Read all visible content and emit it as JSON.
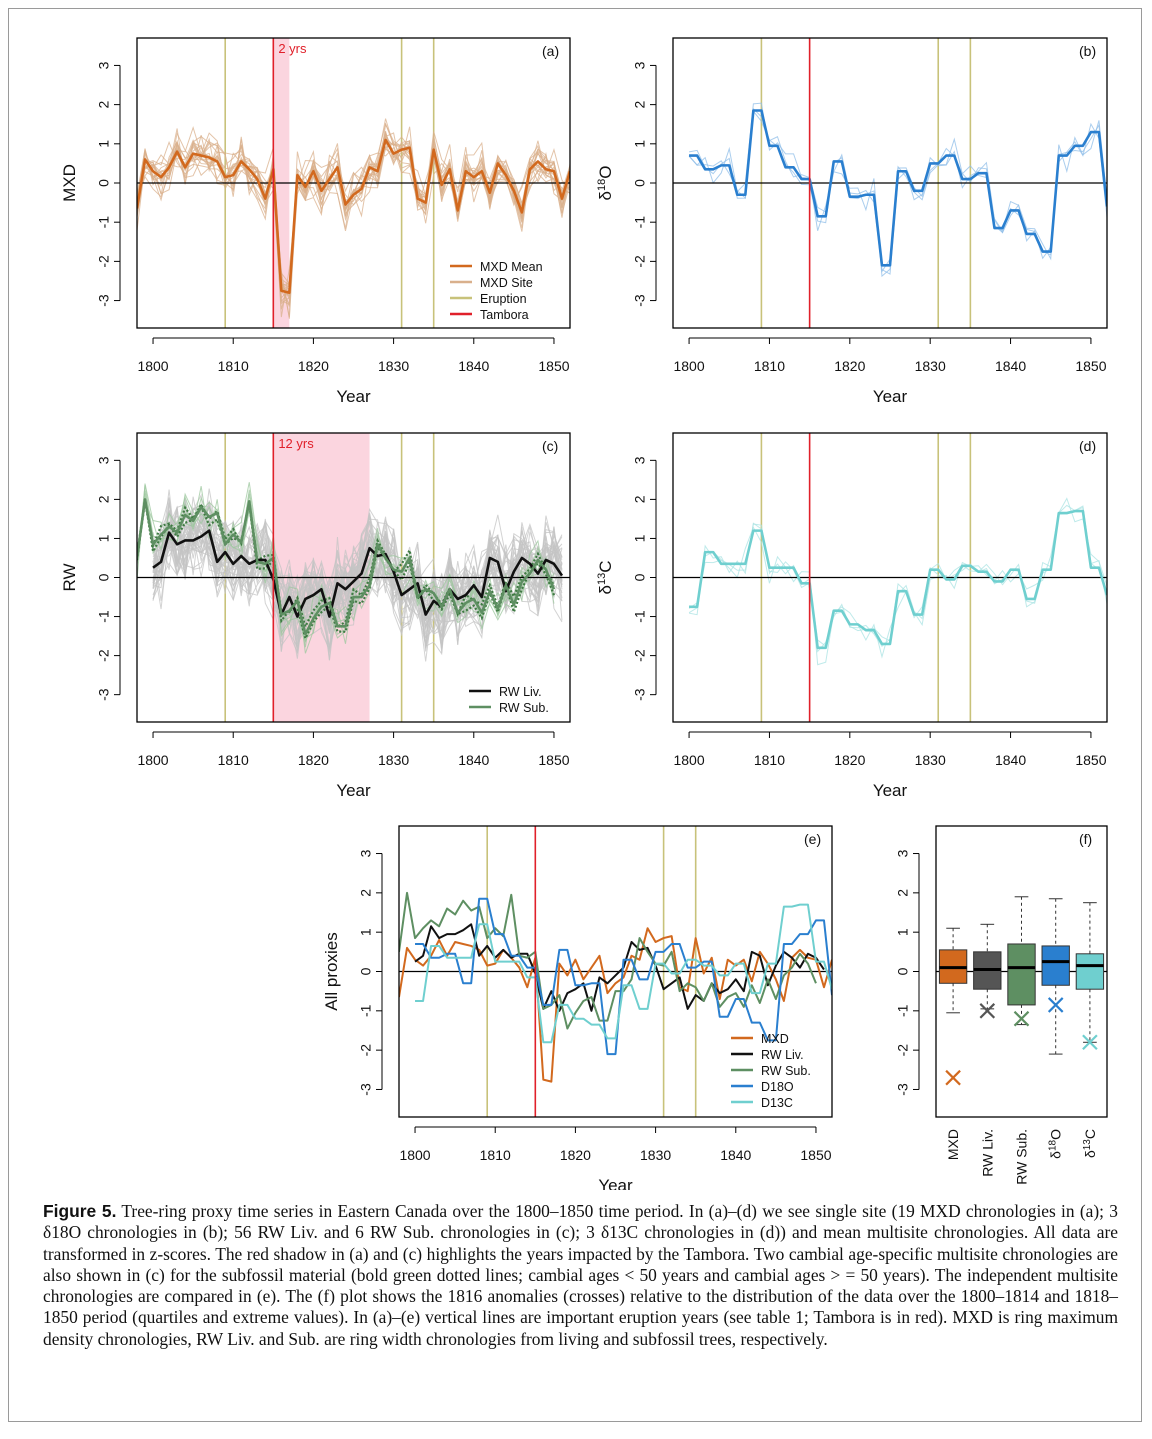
{
  "figure": {
    "caption_label": "Figure 5.",
    "caption_text": "Tree-ring proxy time series in Eastern Canada over the 1800–1850 time period. In (a)–(d) we see single site (19 MXD chronologies in (a); 3 δ18O chronologies in (b); 56 RW Liv. and 6 RW Sub. chronologies in (c); 3 δ13C chronologies in (d)) and mean multisite chronologies. All data are transformed in z-scores. The red shadow in (a) and (c) highlights the years impacted by the Tambora. Two cambial age-specific multisite chronologies are also shown in (c) for the subfossil material (bold green dotted lines; cambial ages < 50 years and cambial ages > = 50 years). The independent multisite chronologies are compared in (e). The (f) plot shows the 1816 anomalies (crosses) relative to the distribution of the data over the 1800–1814 and 1818–1850 period (quartiles and extreme values). In (a)–(e) vertical lines are important eruption years (see table 1; Tambora is in red). MXD is ring maximum density chronologies, RW Liv. and Sub. are ring width chronologies from living and subfossil trees, respectively."
  },
  "colors": {
    "mxd": "#d2691e",
    "mxd_site": "#d9b08c",
    "eruption": "#c8c27a",
    "tambora": "#e0202a",
    "rw_liv": "#111111",
    "rw_sub": "#5e8f62",
    "d18o": "#2a7fcf",
    "d13c": "#6fcfcf",
    "shade": "#fbd5df"
  },
  "chart_data": [
    {
      "type": "line",
      "panel": "(a)",
      "ylabel": "MXD",
      "xlabel": "Year",
      "xlim": [
        1798,
        1852
      ],
      "ylim": [
        -3.7,
        3.7
      ],
      "xticks": [
        "1800",
        "1810",
        "1820",
        "1830",
        "1840",
        "1850"
      ],
      "yticks": [
        "-3",
        "-2",
        "-1",
        "0",
        "1",
        "2",
        "3"
      ],
      "eruptions": [
        1809,
        1831,
        1835
      ],
      "tambora": 1815,
      "shade": {
        "start": 1815,
        "end": 1817,
        "label": "2 yrs"
      },
      "legend": [
        "MXD Mean",
        "MXD Site",
        "Eruption",
        "Tambora"
      ],
      "series": [
        {
          "name": "MXD Mean",
          "x_start": 1798,
          "values": [
            -0.65,
            0.6,
            0.3,
            0.15,
            0.4,
            0.8,
            0.4,
            0.75,
            0.7,
            0.65,
            0.55,
            0.15,
            0.2,
            0.55,
            0.35,
            0.1,
            -0.4,
            0.35,
            -2.75,
            -2.8,
            0.2,
            -0.1,
            0.3,
            -0.2,
            0.1,
            0.4,
            -0.55,
            -0.3,
            -0.15,
            0.4,
            0.3,
            1.1,
            0.75,
            0.85,
            0.9,
            -0.4,
            -0.5,
            0.85,
            -0.05,
            0.35,
            -0.7,
            0.3,
            0.15,
            0.3,
            -0.25,
            0.5,
            0.2,
            -0.2,
            -0.75,
            0.35,
            0.55,
            0.35,
            0.3,
            -0.4,
            0.3
          ]
        }
      ]
    },
    {
      "type": "line",
      "panel": "(b)",
      "ylabel": "δ18O",
      "xlabel": "Year",
      "xlim": [
        1798,
        1852
      ],
      "ylim": [
        -3.7,
        3.7
      ],
      "xticks": [
        "1800",
        "1810",
        "1820",
        "1830",
        "1840",
        "1850"
      ],
      "yticks": [
        "-3",
        "-2",
        "-1",
        "0",
        "1",
        "2",
        "3"
      ],
      "eruptions": [
        1809,
        1831,
        1835
      ],
      "tambora": 1815,
      "series": [
        {
          "name": "δ18O mean",
          "x_start": 1800,
          "values": [
            0.7,
            0.7,
            0.35,
            0.35,
            0.45,
            0.45,
            -0.3,
            -0.3,
            1.85,
            1.85,
            0.95,
            0.95,
            0.4,
            0.4,
            0.1,
            0.1,
            -0.85,
            -0.85,
            0.55,
            0.55,
            -0.35,
            -0.35,
            -0.3,
            -0.3,
            -2.1,
            -2.1,
            0.3,
            0.3,
            -0.2,
            -0.2,
            0.5,
            0.5,
            0.7,
            0.7,
            0.1,
            0.1,
            0.25,
            0.25,
            -1.15,
            -1.15,
            -0.7,
            -0.7,
            -1.3,
            -1.3,
            -1.75,
            -1.75,
            0.7,
            0.7,
            0.95,
            0.95,
            1.3,
            1.3,
            -0.6
          ]
        }
      ]
    },
    {
      "type": "line",
      "panel": "(c)",
      "ylabel": "RW",
      "xlabel": "Year",
      "xlim": [
        1798,
        1852
      ],
      "ylim": [
        -3.7,
        3.7
      ],
      "xticks": [
        "1800",
        "1810",
        "1820",
        "1830",
        "1840",
        "1850"
      ],
      "yticks": [
        "-3",
        "-2",
        "-1",
        "0",
        "1",
        "2",
        "3"
      ],
      "eruptions": [
        1809,
        1831,
        1835
      ],
      "tambora": 1815,
      "shade": {
        "start": 1815,
        "end": 1827,
        "label": "12 yrs"
      },
      "legend": [
        "RW Liv.",
        "RW Sub."
      ],
      "series": [
        {
          "name": "RW Liv.",
          "x_start": 1800,
          "values": [
            0.25,
            0.4,
            1.15,
            0.85,
            0.95,
            0.95,
            1.05,
            1.2,
            0.4,
            0.65,
            0.35,
            0.55,
            0.35,
            0.45,
            0.45,
            -0.05,
            -0.95,
            -0.5,
            -1.0,
            -0.55,
            -0.45,
            -0.3,
            -1.0,
            -0.15,
            -0.3,
            -0.1,
            0.1,
            0.75,
            0.55,
            0.6,
            0.15,
            -0.45,
            -0.3,
            -0.15,
            -0.95,
            -0.6,
            -0.75,
            -0.3,
            -0.55,
            -0.45,
            -0.2,
            -0.5,
            0.5,
            0.4,
            -0.35,
            0.15,
            0.5,
            0.35,
            0.1,
            0.45,
            0.35,
            0.05
          ]
        },
        {
          "name": "RW Sub.",
          "x_start": 1798,
          "values": [
            0.5,
            2.0,
            0.85,
            1.1,
            1.3,
            1.15,
            1.6,
            1.45,
            1.8,
            1.55,
            1.65,
            0.85,
            1.1,
            0.9,
            1.95,
            0.4,
            0.35,
            0.5,
            -0.95,
            -0.85,
            -0.6,
            -1.45,
            -1.05,
            -0.75,
            -0.65,
            -1.25,
            -1.25,
            -0.5,
            -0.5,
            -0.2,
            0.85,
            0.5,
            0.2,
            0.15,
            0.5,
            -0.5,
            -0.3,
            -0.4,
            -0.75,
            -0.3,
            -0.9,
            -0.65,
            -0.55,
            -0.9,
            -0.35,
            -0.8,
            -0.2,
            -0.7,
            -0.1,
            0.1,
            0.45,
            0.2,
            -0.3
          ]
        }
      ]
    },
    {
      "type": "line",
      "panel": "(d)",
      "ylabel": "δ13C",
      "xlabel": "Year",
      "xlim": [
        1798,
        1852
      ],
      "ylim": [
        -3.7,
        3.7
      ],
      "xticks": [
        "1800",
        "1810",
        "1820",
        "1830",
        "1840",
        "1850"
      ],
      "yticks": [
        "-3",
        "-2",
        "-1",
        "0",
        "1",
        "2",
        "3"
      ],
      "eruptions": [
        1809,
        1831,
        1835
      ],
      "tambora": 1815,
      "series": [
        {
          "name": "δ13C mean",
          "x_start": 1800,
          "values": [
            -0.75,
            -0.75,
            0.65,
            0.65,
            0.35,
            0.35,
            0.35,
            0.35,
            1.2,
            1.2,
            0.25,
            0.25,
            0.25,
            0.25,
            -0.15,
            -0.15,
            -1.8,
            -1.8,
            -0.85,
            -0.85,
            -1.2,
            -1.2,
            -1.35,
            -1.35,
            -1.7,
            -1.7,
            -0.35,
            -0.35,
            -0.95,
            -0.95,
            0.2,
            0.2,
            -0.05,
            -0.05,
            0.3,
            0.3,
            0.15,
            0.15,
            -0.1,
            -0.1,
            0.2,
            0.2,
            -0.55,
            -0.55,
            0.2,
            0.2,
            1.65,
            1.65,
            1.7,
            1.7,
            0.25,
            0.25,
            -0.45
          ]
        }
      ]
    },
    {
      "type": "line",
      "panel": "(e)",
      "ylabel": "All proxies",
      "xlabel": "Year",
      "xlim": [
        1798,
        1852
      ],
      "ylim": [
        -3.7,
        3.7
      ],
      "xticks": [
        "1800",
        "1810",
        "1820",
        "1830",
        "1840",
        "1850"
      ],
      "yticks": [
        "-3",
        "-2",
        "-1",
        "0",
        "1",
        "2",
        "3"
      ],
      "eruptions": [
        1809,
        1831,
        1835
      ],
      "tambora": 1815,
      "legend": [
        "MXD",
        "RW Liv.",
        "RW Sub.",
        "D18O",
        "D13C"
      ],
      "series_refs": [
        "MXD Mean",
        "RW Liv.",
        "RW Sub.",
        "δ18O mean",
        "δ13C mean"
      ]
    },
    {
      "type": "box",
      "panel": "(f)",
      "ylim": [
        -3.7,
        3.7
      ],
      "yticks": [
        "-3",
        "-2",
        "-1",
        "0",
        "1",
        "2",
        "3"
      ],
      "categories": [
        "MXD",
        "RW Liv.",
        "RW Sub.",
        "δ18O",
        "δ13C"
      ],
      "boxes": [
        {
          "min": -1.05,
          "q1": -0.3,
          "median": 0.1,
          "q3": 0.55,
          "max": 1.1,
          "anomaly_1816": -2.7
        },
        {
          "min": -0.95,
          "q1": -0.45,
          "median": 0.05,
          "q3": 0.5,
          "max": 1.2,
          "anomaly_1816": -1.0
        },
        {
          "min": -1.35,
          "q1": -0.85,
          "median": 0.1,
          "q3": 0.7,
          "max": 1.9,
          "anomaly_1816": -1.2
        },
        {
          "min": -2.1,
          "q1": -0.35,
          "median": 0.25,
          "q3": 0.65,
          "max": 1.85,
          "anomaly_1816": -0.85
        },
        {
          "min": -1.8,
          "q1": -0.45,
          "median": 0.15,
          "q3": 0.45,
          "max": 1.75,
          "anomaly_1816": -1.8
        }
      ]
    }
  ]
}
